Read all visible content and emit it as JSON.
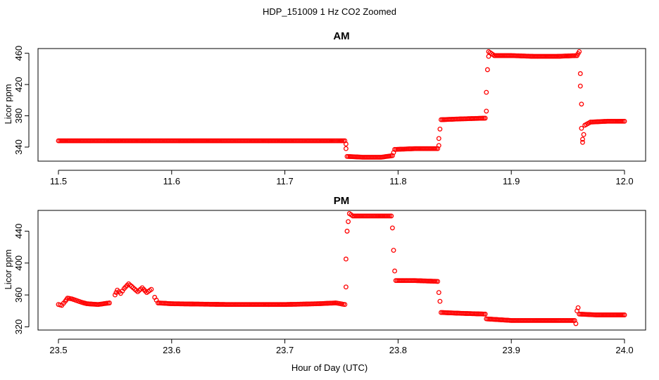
{
  "figure": {
    "title": "HDP_151009  1 Hz CO2 Zoomed",
    "xlabel": "Hour of Day (UTC)",
    "marker_color": "#ff0000"
  },
  "chart_data": [
    {
      "type": "scatter",
      "title": "AM",
      "xlabel": "",
      "ylabel": "Licor ppm",
      "xlim": [
        11.5,
        12.0
      ],
      "ylim": [
        322,
        466
      ],
      "xticks": [
        11.5,
        11.6,
        11.7,
        11.8,
        11.9,
        12.0
      ],
      "xtick_labels": [
        "11.5",
        "11.6",
        "11.7",
        "11.8",
        "11.9",
        "12.0"
      ],
      "yticks": [
        340,
        380,
        420,
        460
      ],
      "ytick_labels": [
        "340",
        "380",
        "420",
        "460"
      ],
      "grid": false,
      "series": [
        {
          "color": "#ff0000",
          "marker": "open-circle",
          "points": [
            [
              11.5,
              348
            ],
            [
              11.55,
              348
            ],
            [
              11.6,
              348
            ],
            [
              11.65,
              348
            ],
            [
              11.7,
              348
            ],
            [
              11.74,
              348
            ],
            [
              11.753,
              348
            ],
            [
              11.754,
              344
            ],
            [
              11.754,
              338
            ],
            [
              11.755,
              328
            ],
            [
              11.77,
              327
            ],
            [
              11.785,
              327
            ],
            [
              11.795,
              329
            ],
            [
              11.797,
              337
            ],
            [
              11.815,
              338
            ],
            [
              11.835,
              338
            ],
            [
              11.836,
              342
            ],
            [
              11.836,
              351
            ],
            [
              11.837,
              363
            ],
            [
              11.838,
              375
            ],
            [
              11.855,
              376
            ],
            [
              11.877,
              377
            ],
            [
              11.878,
              386
            ],
            [
              11.878,
              410
            ],
            [
              11.879,
              439
            ],
            [
              11.88,
              456
            ],
            [
              11.88,
              462
            ],
            [
              11.885,
              457
            ],
            [
              11.9,
              457
            ],
            [
              11.92,
              456
            ],
            [
              11.94,
              456
            ],
            [
              11.958,
              457
            ],
            [
              11.96,
              462
            ],
            [
              11.961,
              434
            ],
            [
              11.961,
              418
            ],
            [
              11.962,
              395
            ],
            [
              11.962,
              364
            ],
            [
              11.963,
              350
            ],
            [
              11.963,
              346
            ],
            [
              11.964,
              356
            ],
            [
              11.965,
              368
            ],
            [
              11.97,
              372
            ],
            [
              11.985,
              373
            ],
            [
              12.0,
              373
            ]
          ]
        }
      ]
    },
    {
      "type": "scatter",
      "title": "PM",
      "xlabel": "Hour of Day (UTC)",
      "ylabel": "Licor ppm",
      "xlim": [
        23.5,
        24.0
      ],
      "ylim": [
        316,
        466
      ],
      "xticks": [
        23.5,
        23.6,
        23.7,
        23.8,
        23.9,
        24.0
      ],
      "xtick_labels": [
        "23.5",
        "23.6",
        "23.7",
        "23.8",
        "23.9",
        "24.0"
      ],
      "yticks": [
        320,
        360,
        400,
        440
      ],
      "ytick_labels": [
        "320",
        "360",
        "400",
        "440"
      ],
      "grid": false,
      "series": [
        {
          "color": "#ff0000",
          "marker": "open-circle",
          "points": [
            [
              23.5,
              348
            ],
            [
              23.503,
              347
            ],
            [
              23.506,
              352
            ],
            [
              23.508,
              356
            ],
            [
              23.512,
              355
            ],
            [
              23.52,
              351
            ],
            [
              23.525,
              349
            ],
            [
              23.535,
              348
            ],
            [
              23.545,
              350
            ],
            [
              23.55,
              360
            ],
            [
              23.552,
              366
            ],
            [
              23.555,
              362
            ],
            [
              23.558,
              368
            ],
            [
              23.562,
              374
            ],
            [
              23.566,
              369
            ],
            [
              23.57,
              364
            ],
            [
              23.574,
              369
            ],
            [
              23.578,
              363
            ],
            [
              23.582,
              367
            ],
            [
              23.585,
              357
            ],
            [
              23.588,
              350
            ],
            [
              23.6,
              349
            ],
            [
              23.65,
              348
            ],
            [
              23.7,
              348
            ],
            [
              23.73,
              349
            ],
            [
              23.745,
              350
            ],
            [
              23.753,
              348
            ],
            [
              23.754,
              370
            ],
            [
              23.754,
              405
            ],
            [
              23.755,
              440
            ],
            [
              23.756,
              452
            ],
            [
              23.757,
              462
            ],
            [
              23.76,
              459
            ],
            [
              23.775,
              459
            ],
            [
              23.794,
              459
            ],
            [
              23.795,
              444
            ],
            [
              23.796,
              416
            ],
            [
              23.797,
              390
            ],
            [
              23.798,
              378
            ],
            [
              23.815,
              378
            ],
            [
              23.835,
              377
            ],
            [
              23.836,
              363
            ],
            [
              23.837,
              352
            ],
            [
              23.838,
              338
            ],
            [
              23.855,
              337
            ],
            [
              23.877,
              336
            ],
            [
              23.878,
              330
            ],
            [
              23.9,
              328
            ],
            [
              23.93,
              328
            ],
            [
              23.956,
              328
            ],
            [
              23.957,
              324
            ],
            [
              23.958,
              340
            ],
            [
              23.959,
              344
            ],
            [
              23.96,
              336
            ],
            [
              23.975,
              335
            ],
            [
              24.0,
              335
            ]
          ]
        }
      ]
    }
  ]
}
